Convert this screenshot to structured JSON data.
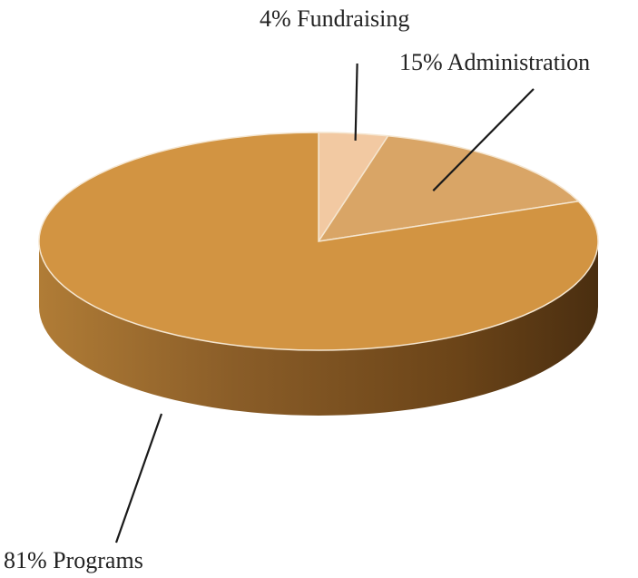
{
  "chart_data": {
    "type": "pie",
    "title": "",
    "slices": [
      {
        "label": "Fundraising",
        "value": 4,
        "display": "4% Fundraising",
        "color": "#f2c9a2"
      },
      {
        "label": "Administration",
        "value": 15,
        "display": "15% Administration",
        "color": "#d9a566"
      },
      {
        "label": "Programs",
        "value": 81,
        "display": "81% Programs",
        "color": "#d29442"
      }
    ],
    "style": "3d",
    "start_angle_deg": 0,
    "direction": "clockwise",
    "legend": "none"
  }
}
